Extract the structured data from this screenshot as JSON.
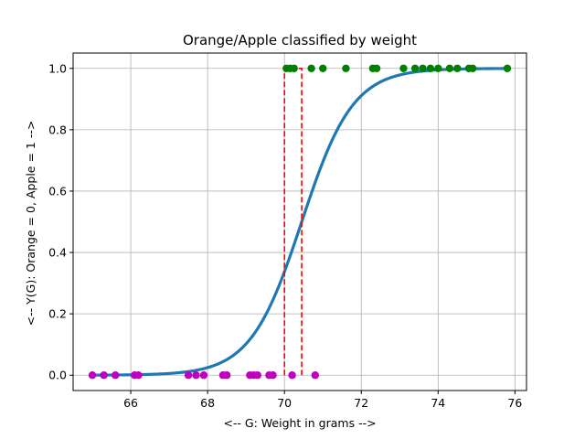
{
  "chart_data": {
    "type": "scatter",
    "title": "Orange/Apple classified by weight",
    "xlabel": "<-- G: Weight in grams -->",
    "ylabel": "<-- Y(G): Orange = 0, Apple = 1 -->",
    "xlim": [
      64.5,
      76.3
    ],
    "ylim": [
      -0.05,
      1.05
    ],
    "xticks": [
      66,
      68,
      70,
      72,
      74,
      76
    ],
    "xtick_labels": [
      "66",
      "68",
      "70",
      "72",
      "74",
      "76"
    ],
    "yticks": [
      0.0,
      0.2,
      0.4,
      0.6,
      0.8,
      1.0
    ],
    "ytick_labels": [
      "0.0",
      "0.2",
      "0.4",
      "0.6",
      "0.8",
      "1.0"
    ],
    "grid": true,
    "series": [
      {
        "kind": "scatter",
        "color": "#00bfbf",
        "points": [
          {
            "x": 65.0,
            "y": 0
          },
          {
            "x": 65.3,
            "y": 0
          },
          {
            "x": 65.6,
            "y": 0
          },
          {
            "x": 66.1,
            "y": 0
          },
          {
            "x": 66.2,
            "y": 0
          },
          {
            "x": 67.5,
            "y": 0
          },
          {
            "x": 67.7,
            "y": 0
          },
          {
            "x": 67.9,
            "y": 0
          },
          {
            "x": 68.4,
            "y": 0
          },
          {
            "x": 68.5,
            "y": 0
          },
          {
            "x": 69.1,
            "y": 0
          },
          {
            "x": 69.2,
            "y": 0
          },
          {
            "x": 69.3,
            "y": 0
          },
          {
            "x": 69.6,
            "y": 0
          },
          {
            "x": 69.7,
            "y": 0
          },
          {
            "x": 70.2,
            "y": 0
          },
          {
            "x": 70.8,
            "y": 0
          }
        ],
        "display_color": "#bf00bf"
      },
      {
        "kind": "scatter",
        "color": "#008000",
        "points": [
          {
            "x": 70.05,
            "y": 1
          },
          {
            "x": 70.15,
            "y": 1
          },
          {
            "x": 70.25,
            "y": 1
          },
          {
            "x": 70.7,
            "y": 1
          },
          {
            "x": 71.0,
            "y": 1
          },
          {
            "x": 71.6,
            "y": 1
          },
          {
            "x": 72.3,
            "y": 1
          },
          {
            "x": 72.4,
            "y": 1
          },
          {
            "x": 73.1,
            "y": 1
          },
          {
            "x": 73.4,
            "y": 1
          },
          {
            "x": 73.6,
            "y": 1
          },
          {
            "x": 73.8,
            "y": 1
          },
          {
            "x": 74.0,
            "y": 1
          },
          {
            "x": 74.3,
            "y": 1
          },
          {
            "x": 74.5,
            "y": 1
          },
          {
            "x": 74.8,
            "y": 1
          },
          {
            "x": 74.9,
            "y": 1
          },
          {
            "x": 75.8,
            "y": 1
          }
        ]
      },
      {
        "kind": "sigmoid-curve",
        "color": "#1f77b4",
        "function": "1 / (1 + exp(-1.5 * (x - 70.45)))",
        "x_range": [
          65.0,
          75.8
        ]
      },
      {
        "kind": "dashed-threshold",
        "color": "#ff0000",
        "points": [
          {
            "x": 70.0,
            "y": 0
          },
          {
            "x": 70.0,
            "y": 1
          },
          {
            "x": 70.45,
            "y": 1
          },
          {
            "x": 70.45,
            "y": 0
          }
        ]
      }
    ]
  }
}
